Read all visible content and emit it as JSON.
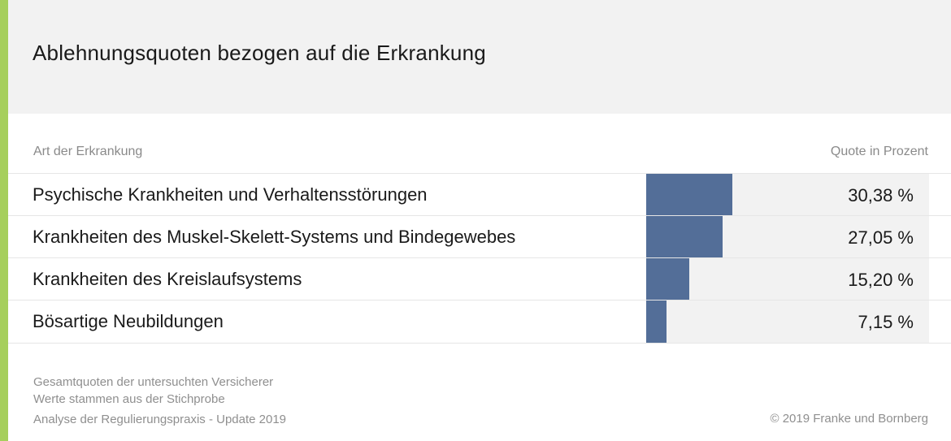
{
  "header": {
    "title": "Ablehnungsquoten bezogen auf die Erkrankung"
  },
  "columns": {
    "left": "Art der Erkrankung",
    "right": "Quote in Prozent"
  },
  "colors": {
    "accent_stripe": "#a6cf5c",
    "bar": "#536e98",
    "track": "#f2f2f2"
  },
  "chart_data": {
    "type": "bar",
    "orientation": "horizontal",
    "categories": [
      "Psychische Krankheiten und Verhaltensstörungen",
      "Krankheiten des Muskel-Skelett-Systems und Bindegewebes",
      "Krankheiten des Kreislaufsystems",
      "Bösartige Neubildungen"
    ],
    "values": [
      30.38,
      27.05,
      15.2,
      7.15
    ],
    "value_labels": [
      "30,38 %",
      "27,05 %",
      "15,20 %",
      "7,15 %"
    ],
    "xlim": [
      0,
      100
    ]
  },
  "footer": {
    "note1": "Gesamtquoten der untersuchten Versicherer",
    "note2": "Werte stammen aus der Stichprobe",
    "note3": "Analyse der Regulierungspraxis - Update 2019",
    "credit": "© 2019 Franke und Bornberg"
  }
}
